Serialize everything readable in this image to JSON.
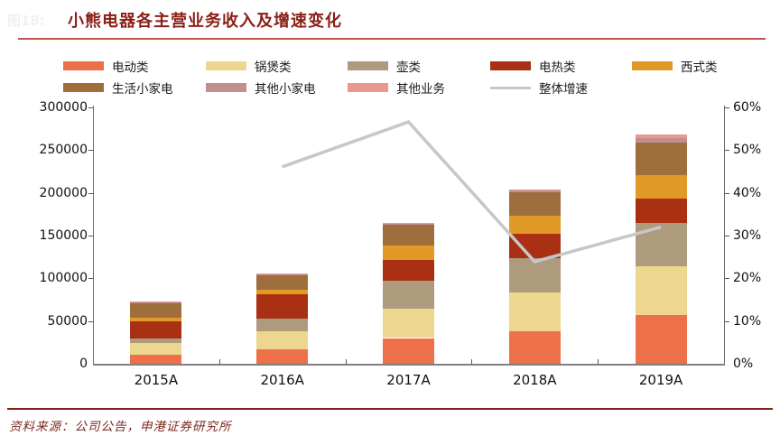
{
  "figure_label": "图18:",
  "title": "小熊电器各主营业务收入及增速变化",
  "source": "资料来源：公司公告，申港证券研究所",
  "colors": {
    "title_text": "#8a1f17",
    "title_rule": "#c25648",
    "footer_rule": "#8a1f17",
    "axis_line": "#6e6e6e",
    "bottom_axis_line": "#808080",
    "growth_line": "#c7c7c7"
  },
  "chart_data": {
    "type": "bar",
    "subtype": "stacked-bar-with-line",
    "title": "小熊电器各主营业务收入及增速变化",
    "categories": [
      "2015A",
      "2016A",
      "2017A",
      "2018A",
      "2019A"
    ],
    "series": [
      {
        "name": "电动类",
        "color": "#ed7049",
        "values": [
          10200,
          16700,
          30100,
          38500,
          57200
        ]
      },
      {
        "name": "锅煲类",
        "color": "#edd78e",
        "values": [
          14200,
          21600,
          33900,
          44500,
          56600
        ]
      },
      {
        "name": "壶类",
        "color": "#ae9b7d",
        "values": [
          5200,
          14900,
          33300,
          41000,
          51000
        ]
      },
      {
        "name": "电热类",
        "color": "#a93012",
        "values": [
          19700,
          28400,
          24400,
          28100,
          28200
        ]
      },
      {
        "name": "西式类",
        "color": "#e29a26",
        "values": [
          4500,
          5200,
          16500,
          21000,
          27600
        ]
      },
      {
        "name": "生活小家电",
        "color": "#9f6e3d",
        "values": [
          18000,
          17400,
          25500,
          28000,
          37900
        ]
      },
      {
        "name": "其他小家电",
        "color": "#c18f8d",
        "values": [
          400,
          500,
          500,
          1500,
          5900
        ]
      },
      {
        "name": "其他业务",
        "color": "#e8998c",
        "values": [
          400,
          500,
          500,
          1500,
          4400
        ]
      }
    ],
    "line_series": {
      "name": "整体增速",
      "color": "#c7c7c7",
      "values_percent": [
        null,
        46.1,
        56.6,
        23.9,
        32.0
      ]
    },
    "left_axis": {
      "min": 0,
      "max": 300000,
      "step": 50000,
      "tick_labels": [
        "0",
        "50000",
        "100000",
        "150000",
        "200000",
        "250000",
        "300000"
      ]
    },
    "right_axis": {
      "min": 0,
      "max": 60,
      "step": 10,
      "tick_labels": [
        "0%",
        "10%",
        "20%",
        "30%",
        "40%",
        "50%",
        "60%"
      ]
    },
    "grid": false,
    "legend_position": "top"
  }
}
